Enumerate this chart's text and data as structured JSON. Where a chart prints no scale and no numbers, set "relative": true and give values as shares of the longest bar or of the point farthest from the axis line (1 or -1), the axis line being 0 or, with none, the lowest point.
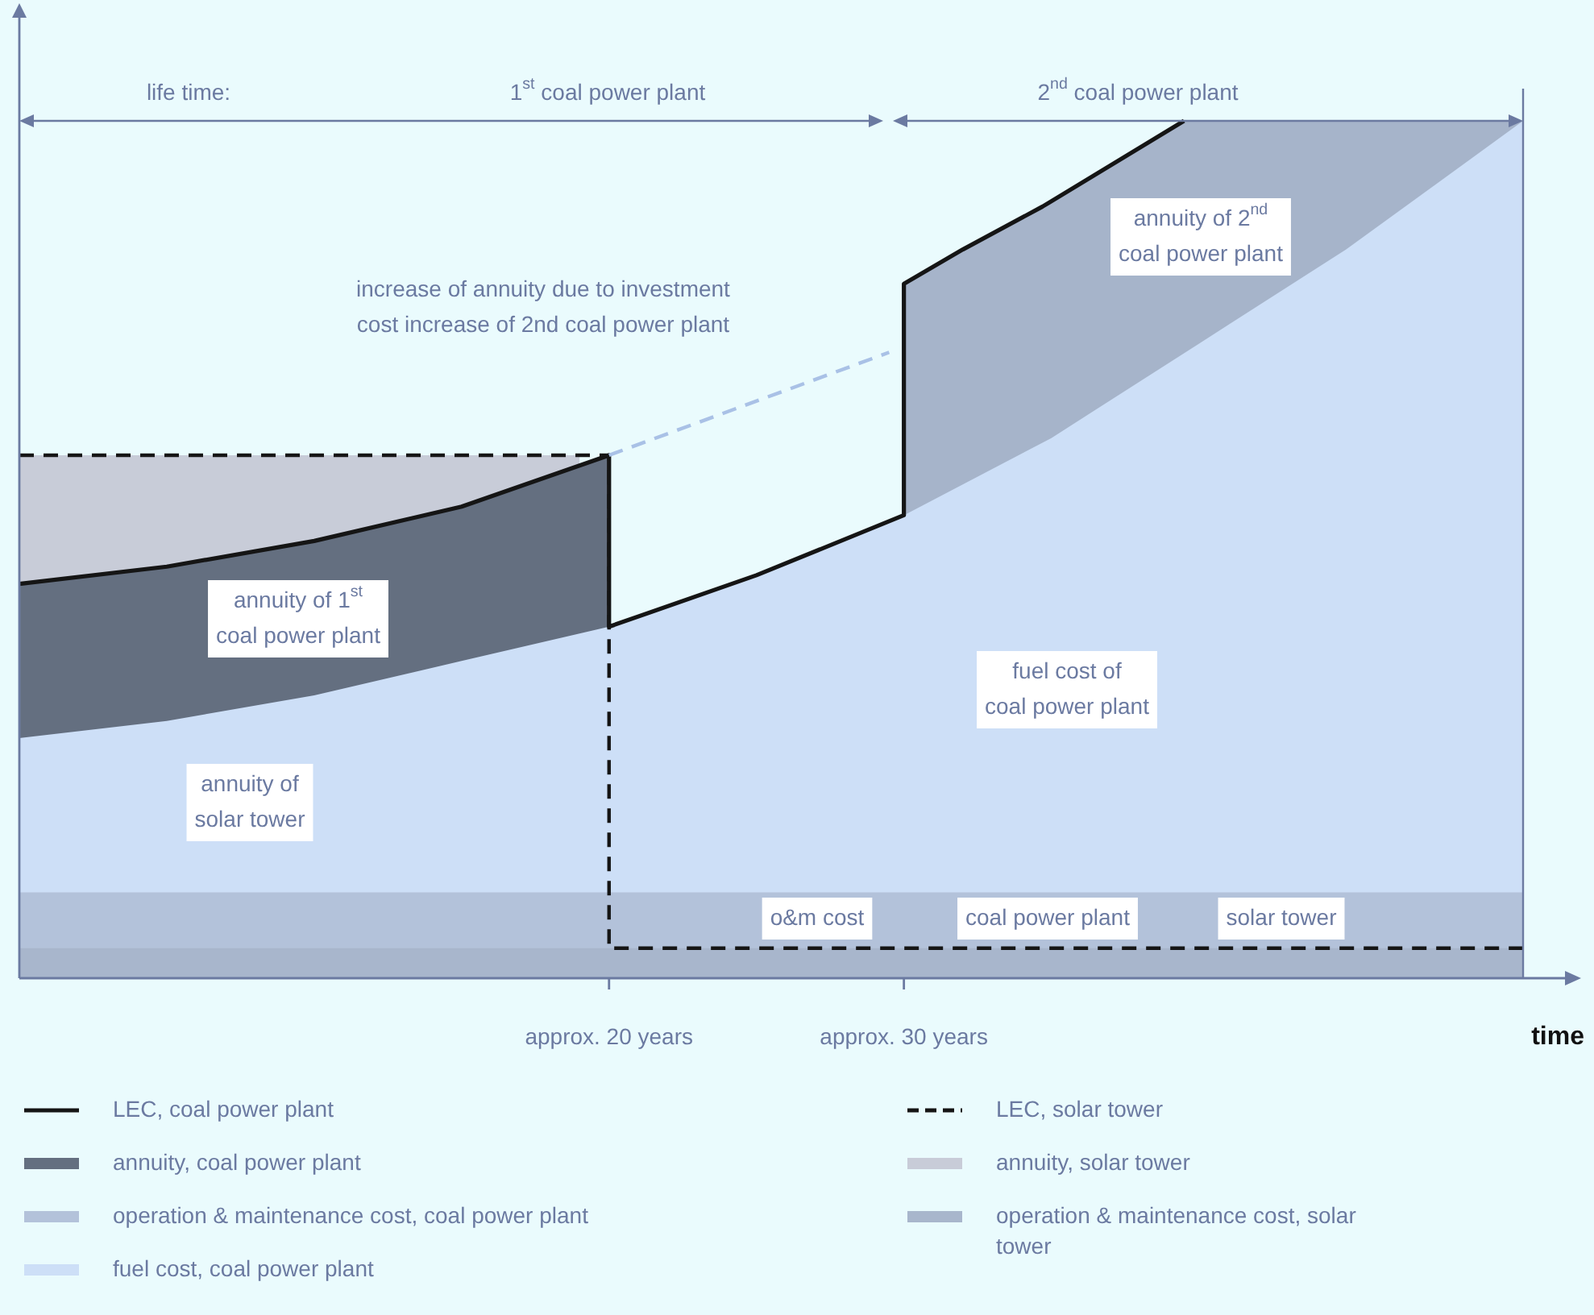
{
  "chart_data": {
    "type": "area",
    "relative": true,
    "xlabel": "time",
    "xlim": [
      0,
      51
    ],
    "xticks": [
      {
        "value": 20,
        "label": "approx. 20 years"
      },
      {
        "value": 30,
        "label": "approx. 30 years"
      }
    ],
    "legend": "bottom",
    "series": [
      {
        "name": "LEC, coal power plant",
        "type": "line",
        "color": "#151515",
        "line_style": "solid",
        "x": [
          0,
          5,
          10,
          15,
          20,
          20,
          25,
          30,
          30,
          32,
          34.7,
          39.5
        ],
        "values": [
          0.46,
          0.48,
          0.51,
          0.55,
          0.61,
          0.41,
          0.47,
          0.54,
          0.81,
          0.85,
          0.9,
          1.0
        ]
      },
      {
        "name": "annuity, coal power plant",
        "color": "#646f80",
        "x": [
          0,
          5,
          10,
          15,
          20
        ],
        "values": [
          0.46,
          0.48,
          0.51,
          0.55,
          0.61
        ]
      },
      {
        "name": "operation & maintenance cost, coal power plant",
        "color": "#b3c2da",
        "x": [
          0,
          51
        ],
        "values": [
          0.1,
          0.1
        ]
      },
      {
        "name": "fuel cost, coal power plant",
        "color": "#cddff7",
        "x": [
          0,
          5,
          10,
          15,
          20,
          25,
          30,
          35,
          40,
          45,
          51
        ],
        "values": [
          0.28,
          0.3,
          0.33,
          0.37,
          0.41,
          0.47,
          0.54,
          0.63,
          0.74,
          0.85,
          1.0
        ]
      },
      {
        "name": "LEC, solar tower",
        "type": "line",
        "color": "#151515",
        "line_style": "dashed",
        "x": [
          0,
          20,
          20,
          51
        ],
        "values": [
          0.61,
          0.61,
          0.035,
          0.035
        ]
      },
      {
        "name": "annuity, solar tower",
        "color": "#c8ccd8",
        "x": [
          0,
          5,
          10,
          15,
          19
        ],
        "values": [
          0.61,
          0.61,
          0.61,
          0.61,
          0.61
        ]
      },
      {
        "name": "operation & maintenance cost, solar tower",
        "color": "#a8b6cc",
        "x": [
          0,
          51
        ],
        "values": [
          0.035,
          0.035
        ]
      },
      {
        "color": "#a6b4ca",
        "x": [
          30,
          32,
          34.7,
          39.5,
          45,
          51
        ],
        "values": [
          0.81,
          0.85,
          0.9,
          1.0,
          1.0,
          1.0
        ]
      },
      {
        "type": "line",
        "color": "#a9c1e6",
        "line_style": "dashed",
        "x": [
          20,
          29.5
        ],
        "values": [
          0.61,
          0.73
        ]
      }
    ],
    "annotations": [
      "life time:",
      "1$^{st}$ coal power plant",
      "2$^{nd}$ coal power plant",
      "increase of annuity due to investment\ncost increase of 2nd coal power plant",
      "annuity of 2$^{nd}$\ncoal power plant",
      "annuity of 1$^{st}$\ncoal power plant",
      "annuity of\nsolar tower",
      "fuel cost of\ncoal power plant",
      "o&m cost",
      "coal power plant",
      "solar tower"
    ]
  }
}
